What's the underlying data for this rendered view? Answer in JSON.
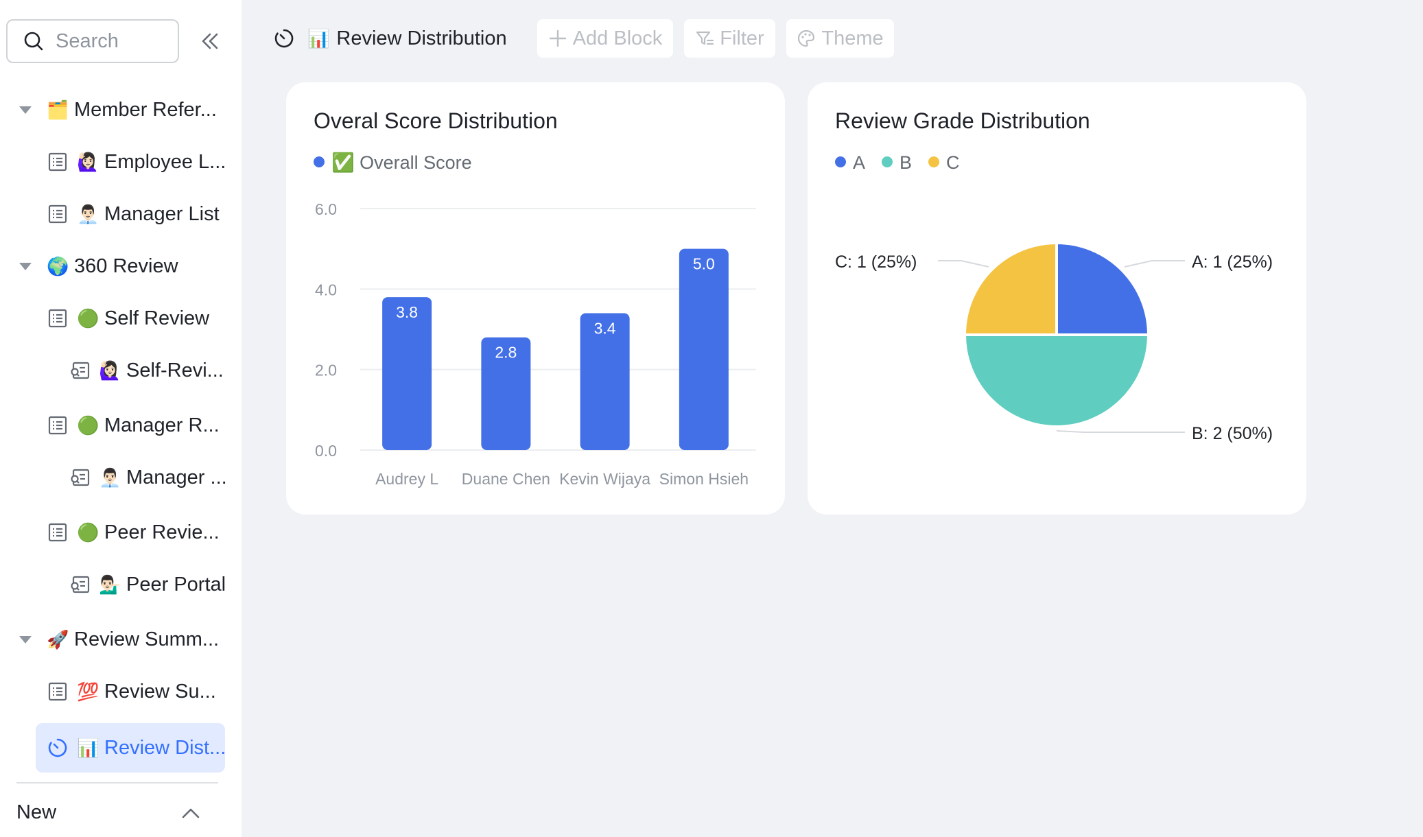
{
  "sidebar": {
    "search_placeholder": "Search",
    "items": [
      {
        "label": "Member Refer...",
        "emoji": "🗂️",
        "type": "folder"
      },
      {
        "label": "Employee L...",
        "emoji": "🙋🏻‍♀️",
        "type": "table"
      },
      {
        "label": "Manager List",
        "emoji": "👨🏻‍💼",
        "type": "table"
      },
      {
        "label": "360 Review",
        "emoji": "🌍",
        "type": "folder"
      },
      {
        "label": "Self Review",
        "emoji": "🟢",
        "type": "table"
      },
      {
        "label": "Self-Revi...",
        "emoji": "🙋🏻‍♀️",
        "type": "form"
      },
      {
        "label": "Manager R...",
        "emoji": "🟢",
        "type": "table"
      },
      {
        "label": "Manager ...",
        "emoji": "👨🏻‍💼",
        "type": "form"
      },
      {
        "label": "Peer Revie...",
        "emoji": "🟢",
        "type": "table"
      },
      {
        "label": "Peer Portal",
        "emoji": "💁🏻‍♂️",
        "type": "form"
      },
      {
        "label": "Review Summ...",
        "emoji": "🚀",
        "type": "folder"
      },
      {
        "label": "Review Su...",
        "emoji": "💯",
        "type": "table"
      },
      {
        "label": "Review Dist...",
        "emoji": "📊",
        "type": "dashboard",
        "active": true
      }
    ],
    "footer_label": "New"
  },
  "topbar": {
    "title": "Review Distribution",
    "title_emoji": "📊",
    "add_block": "Add Block",
    "filter": "Filter",
    "theme": "Theme"
  },
  "colors": {
    "accent": "#3370ff",
    "bar": "#4370e6",
    "pie_a": "#4370e6",
    "pie_b": "#5fcdbf",
    "pie_c": "#f5c342"
  },
  "chart_data": [
    {
      "type": "bar",
      "title": "Overal Score Distribution",
      "legend": [
        {
          "name": "Overall Score",
          "emoji": "✅",
          "color": "#4370e6"
        }
      ],
      "categories": [
        "Audrey L",
        "Duane Chen",
        "Kevin Wijaya",
        "Simon Hsieh"
      ],
      "values": [
        3.8,
        2.8,
        3.4,
        5.0
      ],
      "value_labels": [
        "3.8",
        "2.8",
        "3.4",
        "5.0"
      ],
      "ylim": [
        0,
        6
      ],
      "yticks": [
        "0.0",
        "2.0",
        "4.0",
        "6.0"
      ],
      "grid": true
    },
    {
      "type": "pie",
      "title": "Review Grade Distribution",
      "legend": [
        {
          "name": "A",
          "color": "#4370e6"
        },
        {
          "name": "B",
          "color": "#5fcdbf"
        },
        {
          "name": "C",
          "color": "#f5c342"
        }
      ],
      "slices": [
        {
          "name": "A",
          "value": 1,
          "label": "A: 1 (25%)"
        },
        {
          "name": "B",
          "value": 2,
          "label": "B: 2 (50%)"
        },
        {
          "name": "C",
          "value": 1,
          "label": "C: 1 (25%)"
        }
      ]
    }
  ]
}
